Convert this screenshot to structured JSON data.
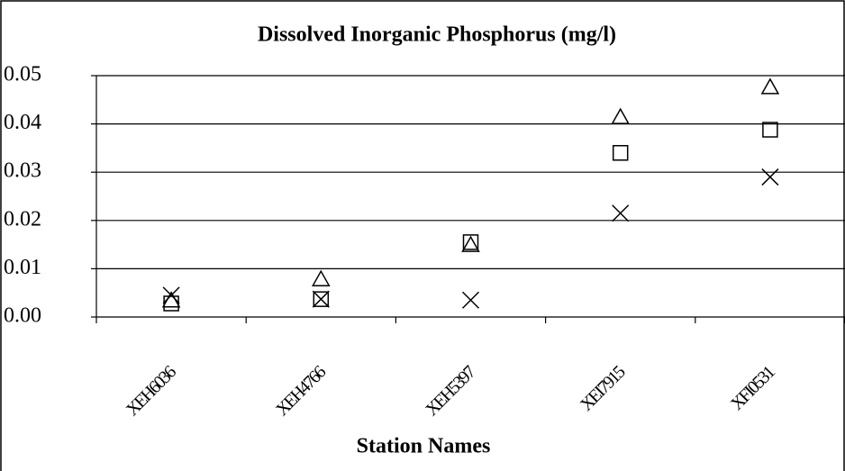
{
  "chart_data": {
    "type": "scatter",
    "title": "Dissolved Inorganic Phosphorus (mg/l)",
    "xlabel": "Station Names",
    "categories": [
      "XEH6036",
      "XEH4766",
      "XEH5397",
      "XEI7915",
      "XFI0531"
    ],
    "series": [
      {
        "marker": "triangle",
        "color": "#000000",
        "values": [
          0.0034,
          0.0078,
          0.0149,
          0.0414,
          0.0476
        ]
      },
      {
        "marker": "square",
        "color": "#000000",
        "values": [
          0.0028,
          0.0037,
          0.0155,
          0.034,
          0.0388
        ]
      },
      {
        "marker": "x",
        "color": "#000000",
        "values": [
          0.0045,
          0.0037,
          0.0035,
          0.0215,
          0.029
        ]
      }
    ],
    "ylim": [
      0,
      0.05
    ],
    "yticks": [
      {
        "value": 0,
        "label": "0.00"
      },
      0.01,
      0.02,
      0.03,
      0.04,
      0.05
    ],
    "grid": true
  }
}
